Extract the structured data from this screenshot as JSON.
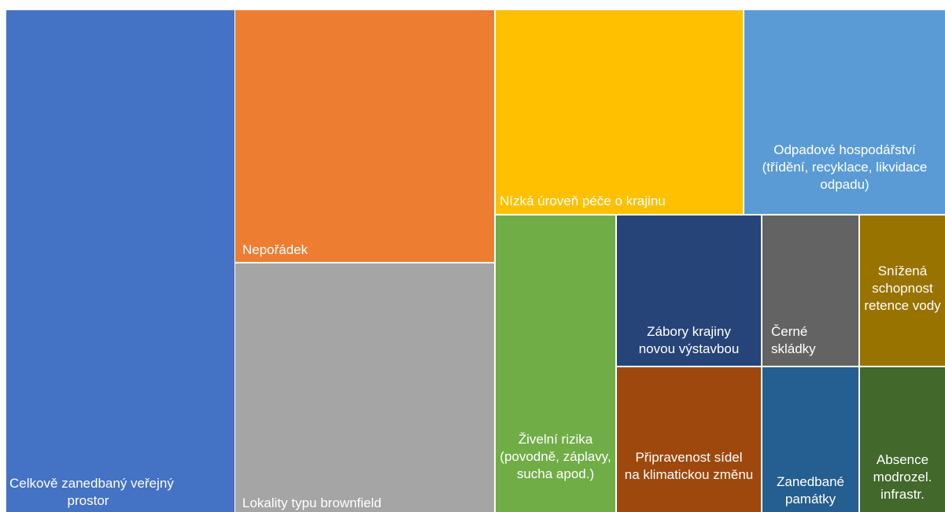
{
  "chart_data": {
    "type": "treemap",
    "title": "",
    "items": [
      {
        "label": "Celkově zanedbaný veřejný prostor",
        "color": "#4472C4"
      },
      {
        "label": "Nepořádek",
        "color": "#ED7D31"
      },
      {
        "label": "Lokality typu brownfield",
        "color": "#A5A5A5"
      },
      {
        "label": "Nízká úroveň péče o krajinu",
        "color": "#FFC000"
      },
      {
        "label": "Odpadové hospodářství (třídění, recyklace, likvidace odpadu)",
        "color": "#5B9BD5"
      },
      {
        "label": "Živelní rizika (povodně, záplavy, sucha apod.)",
        "color": "#70AD47"
      },
      {
        "label": "Zábory krajiny novou výstavbou",
        "color": "#264478"
      },
      {
        "label": "Černé skládky",
        "color": "#636363"
      },
      {
        "label": "Snížená schopnost retence vody",
        "color": "#997300"
      },
      {
        "label": "Připravenost sídel na klimatickou změnu",
        "color": "#9E480E"
      },
      {
        "label": "Zanedbané památky",
        "color": "#255E91"
      },
      {
        "label": "Absence modrozel. infrastr.",
        "color": "#43682B"
      }
    ]
  }
}
